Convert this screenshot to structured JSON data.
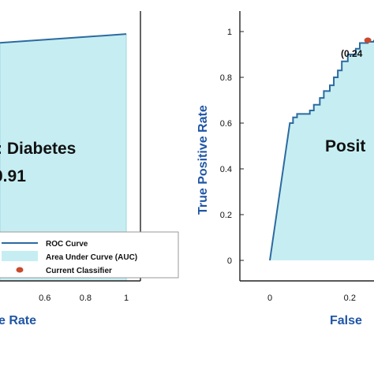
{
  "colors": {
    "curve": "#2c6aa0",
    "auc_fill": "#c6eef2",
    "point": "#c94a2c",
    "axis_title": "#1f55a5",
    "axis": "#222222"
  },
  "chart_data": [
    {
      "type": "line",
      "title": "",
      "title_fragment": ": Diabetes",
      "auc_fragment": "0.91",
      "xlabel": "e Rate",
      "ylabel": "",
      "xticks": [
        "0.6",
        "0.8",
        "1"
      ],
      "xlim": [
        0.38,
        1.0
      ],
      "ylim": [
        0.0,
        1.0
      ],
      "grid": false,
      "legend_position": "bottom-right",
      "legend": [
        "ROC Curve",
        "Area Under Curve (AUC)",
        "Current Classifier"
      ],
      "series": [
        {
          "x": [
            0.38,
            1.0
          ],
          "y": [
            0.955,
            0.99
          ]
        }
      ]
    },
    {
      "type": "line",
      "title": "",
      "title_fragment": "Posit",
      "xlabel": "False",
      "ylabel": "True Positive Rate",
      "xticks": [
        "0",
        "0.2"
      ],
      "yticks": [
        "0",
        "0.2",
        "0.4",
        "0.6",
        "0.8",
        "1"
      ],
      "xlim": [
        0.0,
        0.45
      ],
      "ylim": [
        0.0,
        1.0
      ],
      "grid": false,
      "current_point": {
        "x": 0.245,
        "y": 0.955,
        "label": "(0.24"
      },
      "series": [
        {
          "x": [
            0,
            0.05,
            0.058,
            0.058,
            0.068,
            0.068,
            0.1,
            0.1,
            0.11,
            0.11,
            0.125,
            0.125,
            0.135,
            0.135,
            0.15,
            0.15,
            0.16,
            0.16,
            0.17,
            0.17,
            0.18,
            0.18,
            0.195,
            0.195,
            0.215,
            0.215,
            0.225,
            0.225,
            0.245,
            0.245,
            0.26,
            0.26,
            0.29,
            0.29,
            0.36,
            0.36,
            0.45
          ],
          "y": [
            0,
            0.6,
            0.6,
            0.625,
            0.625,
            0.64,
            0.64,
            0.655,
            0.655,
            0.68,
            0.68,
            0.71,
            0.71,
            0.74,
            0.74,
            0.765,
            0.765,
            0.8,
            0.8,
            0.83,
            0.83,
            0.87,
            0.87,
            0.9,
            0.9,
            0.925,
            0.925,
            0.95,
            0.95,
            0.955,
            0.955,
            0.96,
            0.96,
            0.98,
            0.98,
            0.995,
            0.995
          ]
        }
      ]
    }
  ]
}
